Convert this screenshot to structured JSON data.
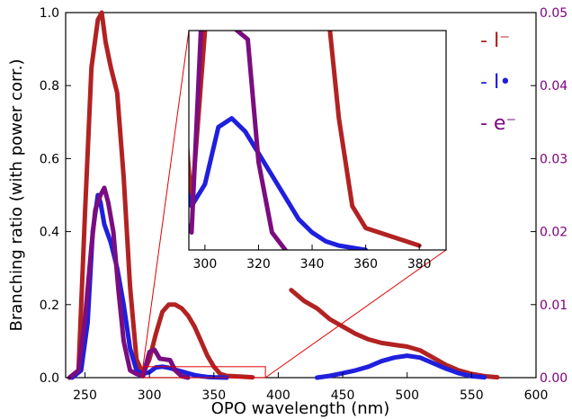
{
  "chart_data": {
    "type": "line",
    "title": "",
    "xlabel": "OPO wavelength (nm)",
    "ylabel": "Branching ratio (with power corr.)",
    "xlim": [
      235,
      600
    ],
    "ylim": [
      0,
      1.0
    ],
    "y2lim": [
      0,
      0.05
    ],
    "xticks": [
      "250",
      "300",
      "350",
      "400",
      "450",
      "500",
      "550",
      "600"
    ],
    "yticks": [
      "0.0",
      "0.2",
      "0.4",
      "0.6",
      "0.8",
      "1.0"
    ],
    "y2ticks": [
      "0.00",
      "0.01",
      "0.02",
      "0.03",
      "0.04",
      "0.05"
    ],
    "legend_position": "top-right",
    "series": [
      {
        "name": "I⁻",
        "display": "- I⁻",
        "color": "#b22222",
        "axis": "left",
        "segments": [
          [
            [
              238,
              0
            ],
            [
              245,
              0.02
            ],
            [
              250,
              0.45
            ],
            [
              255,
              0.85
            ],
            [
              260,
              0.98
            ],
            [
              263,
              1.0
            ],
            [
              266,
              0.92
            ],
            [
              270,
              0.85
            ],
            [
              275,
              0.78
            ],
            [
              280,
              0.55
            ],
            [
              285,
              0.25
            ],
            [
              290,
              0.05
            ],
            [
              295,
              0.01
            ],
            [
              300,
              0.05
            ],
            [
              305,
              0.12
            ],
            [
              310,
              0.18
            ],
            [
              315,
              0.2
            ],
            [
              320,
              0.2
            ],
            [
              325,
              0.19
            ],
            [
              330,
              0.17
            ],
            [
              335,
              0.14
            ],
            [
              340,
              0.1
            ],
            [
              345,
              0.06
            ],
            [
              350,
              0.03
            ],
            [
              355,
              0.01
            ],
            [
              360,
              0.005
            ],
            [
              370,
              0.003
            ],
            [
              380,
              0.001
            ]
          ],
          [
            [
              410,
              0.24
            ],
            [
              420,
              0.21
            ],
            [
              430,
              0.19
            ],
            [
              440,
              0.16
            ],
            [
              450,
              0.14
            ],
            [
              460,
              0.12
            ],
            [
              470,
              0.105
            ],
            [
              480,
              0.095
            ],
            [
              490,
              0.09
            ],
            [
              500,
              0.085
            ],
            [
              510,
              0.075
            ],
            [
              520,
              0.055
            ],
            [
              530,
              0.035
            ],
            [
              540,
              0.02
            ],
            [
              550,
              0.01
            ],
            [
              560,
              0.004
            ],
            [
              570,
              0.001
            ]
          ]
        ]
      },
      {
        "name": "I•",
        "display": "- I•",
        "color": "#1f1fdd",
        "axis": "left",
        "segments": [
          [
            [
              240,
              0
            ],
            [
              247,
              0.02
            ],
            [
              252,
              0.15
            ],
            [
              256,
              0.4
            ],
            [
              260,
              0.5
            ],
            [
              262,
              0.48
            ],
            [
              265,
              0.42
            ],
            [
              270,
              0.37
            ],
            [
              275,
              0.3
            ],
            [
              280,
              0.2
            ],
            [
              285,
              0.08
            ],
            [
              290,
              0.02
            ],
            [
              295,
              0.01
            ],
            [
              300,
              0.015
            ],
            [
              305,
              0.028
            ],
            [
              310,
              0.03
            ],
            [
              315,
              0.027
            ],
            [
              320,
              0.022
            ],
            [
              325,
              0.017
            ],
            [
              330,
              0.012
            ],
            [
              335,
              0.007
            ],
            [
              340,
              0.004
            ],
            [
              345,
              0.002
            ],
            [
              350,
              0.001
            ],
            [
              360,
              0.0
            ]
          ],
          [
            [
              430,
              0.0
            ],
            [
              440,
              0.005
            ],
            [
              450,
              0.012
            ],
            [
              460,
              0.02
            ],
            [
              470,
              0.03
            ],
            [
              480,
              0.045
            ],
            [
              490,
              0.055
            ],
            [
              500,
              0.06
            ],
            [
              510,
              0.055
            ],
            [
              520,
              0.04
            ],
            [
              530,
              0.025
            ],
            [
              540,
              0.012
            ],
            [
              550,
              0.004
            ],
            [
              560,
              0.001
            ]
          ]
        ]
      },
      {
        "name": "e⁻",
        "display": "- e⁻",
        "color": "#7b0d80",
        "axis": "right",
        "segments": [
          [
            [
              238,
              0
            ],
            [
              245,
              0.001
            ],
            [
              250,
              0.008
            ],
            [
              255,
              0.018
            ],
            [
              258,
              0.023
            ],
            [
              262,
              0.025
            ],
            [
              265,
              0.026
            ],
            [
              268,
              0.024
            ],
            [
              272,
              0.02
            ],
            [
              276,
              0.012
            ],
            [
              280,
              0.005
            ],
            [
              285,
              0.001
            ],
            [
              290,
              0.0005
            ],
            [
              295,
              0.0002
            ],
            [
              300,
              0.0035
            ],
            [
              304,
              0.0038
            ],
            [
              308,
              0.0026
            ],
            [
              312,
              0.0025
            ],
            [
              316,
              0.0024
            ],
            [
              320,
              0.001
            ],
            [
              325,
              0.0002
            ],
            [
              330,
              0.0
            ]
          ]
        ]
      }
    ],
    "inset": {
      "xlim": [
        294,
        390
      ],
      "ylim": [
        0,
        0.05
      ],
      "xticks": [
        "300",
        "320",
        "340",
        "360",
        "380"
      ],
      "zoom_box": {
        "x": [
          295,
          390
        ],
        "y": [
          0,
          0.03
        ]
      }
    }
  }
}
